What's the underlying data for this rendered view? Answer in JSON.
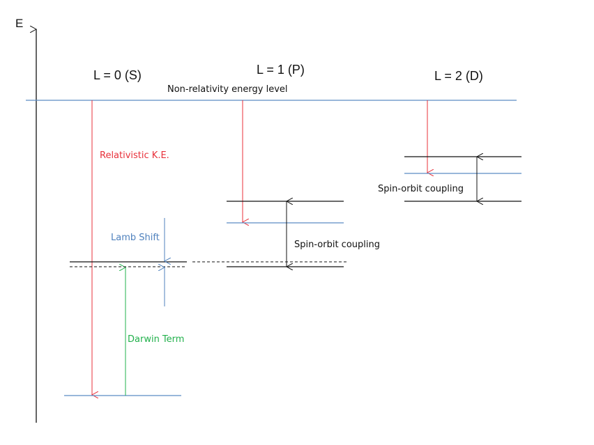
{
  "axis": {
    "label": "E"
  },
  "columns": {
    "s": "L = 0 (S)",
    "p": "L = 1 (P)",
    "d": "L = 2 (D)"
  },
  "labels": {
    "nonrel": "Non-relativity energy level",
    "relke": "Relativistic K.E.",
    "lamb": "Lamb Shift",
    "darwin": "Darwin Term",
    "so_p": "Spin-orbit coupling",
    "so_d": "Spin-orbit coupling"
  },
  "colors": {
    "level_blue": "#5b8cc4",
    "arrow_red": "#e8303a",
    "arrow_green": "#22b14c",
    "lamb_blue": "#4f81bd",
    "relke_text": "#e8303a",
    "darwin_text": "#22b14c",
    "black": "#111111"
  }
}
